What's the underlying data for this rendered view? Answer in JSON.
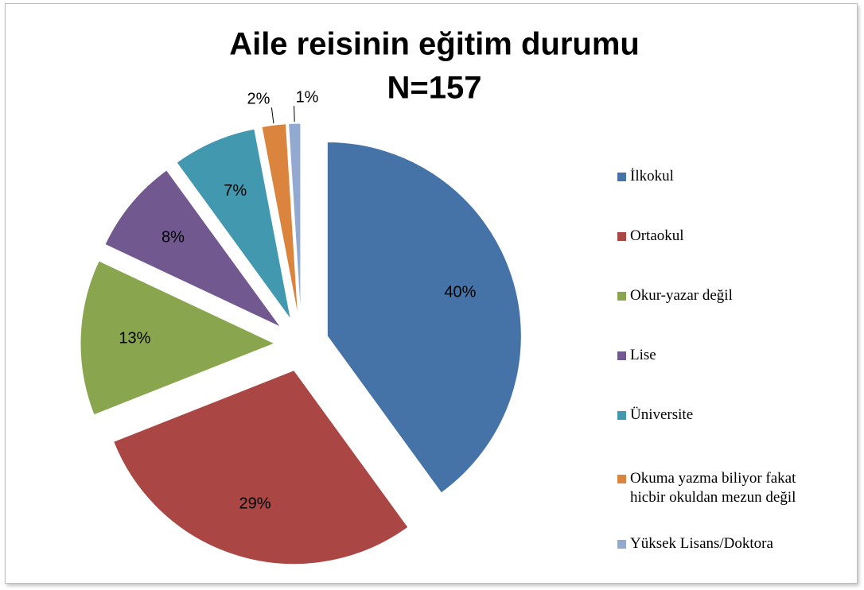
{
  "chart_data": {
    "type": "pie",
    "title": "Aile reisinin eğitim durumu",
    "subtitle": "N=157",
    "categories": [
      "İlkokul",
      "Ortaokul",
      "Okur-yazar değil",
      "Lise",
      "Üniversite",
      "Okuma yazma biliyor fakat hicbir okuldan mezun değil",
      "Yüksek Lisans/Doktora"
    ],
    "values": [
      40,
      29,
      13,
      8,
      7,
      2,
      1
    ],
    "value_labels": [
      "40%",
      "29%",
      "13%",
      "8%",
      "7%",
      "2%",
      "1%"
    ],
    "colors": [
      "#4572a7",
      "#aa4643",
      "#89a54e",
      "#71588f",
      "#4198af",
      "#db843d",
      "#93a9cf"
    ],
    "legend": "right"
  }
}
